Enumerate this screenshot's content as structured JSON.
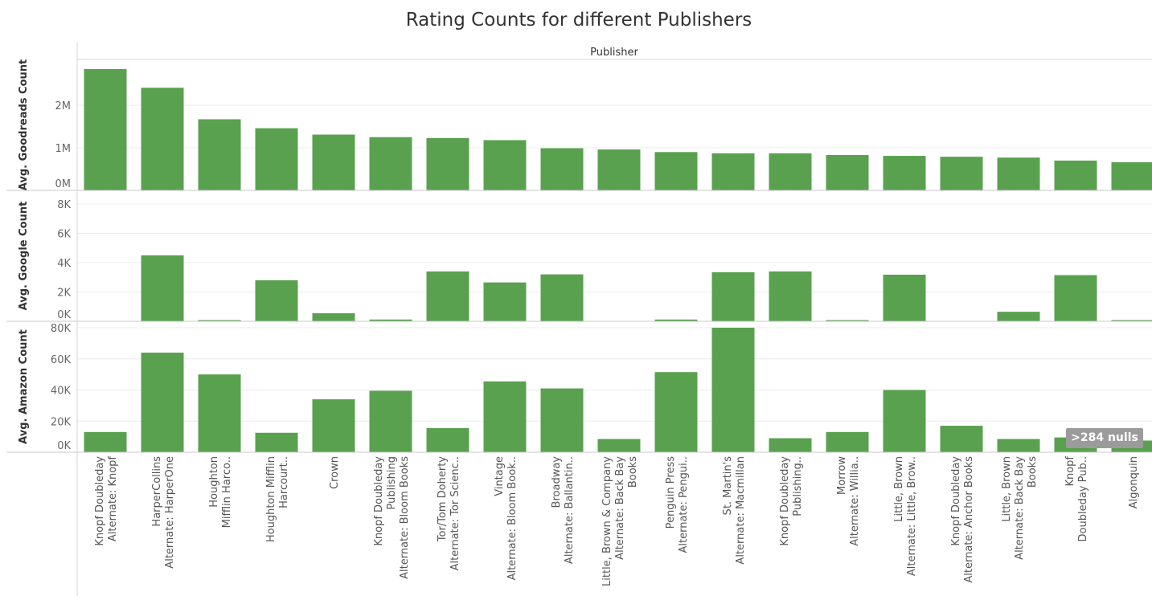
{
  "chart_data": {
    "type": "bar",
    "title": "Rating Counts for different Publishers",
    "column_header": "Publisher",
    "categories": [
      [
        "Knopf Doubleday",
        "Alternate: Knopf"
      ],
      [
        "HarperCollins",
        "Alternate: HarperOne"
      ],
      [
        "Houghton",
        "Mifflin Harco.."
      ],
      [
        "Houghton Mifflin",
        "Harcourt.."
      ],
      [
        "Crown"
      ],
      [
        "Knopf Doubleday",
        "Publishing",
        "Alternate: Bloom Books"
      ],
      [
        "Tor/Tom Doherty",
        "Alternate: Tor Scienc.."
      ],
      [
        "Vintage",
        "Alternate: Bloom Book.."
      ],
      [
        "Broadway",
        "Alternate: Ballantin.."
      ],
      [
        "Little, Brown & Company",
        "Alternate: Back Bay",
        "Books"
      ],
      [
        "Penguin Press",
        "Alternate: Pengui.."
      ],
      [
        "St. Martin's",
        "Alternate: Macmillan"
      ],
      [
        "Knopf Doubleday",
        "Publishing.."
      ],
      [
        "Morrow",
        "Alternate: Willia.."
      ],
      [
        "Little, Brown",
        "Alternate: Little, Brow.."
      ],
      [
        "Knopf Doubleday",
        "Alternate: Anchor Books"
      ],
      [
        "Little, Brown",
        "Alternate: Back Bay",
        "Books"
      ],
      [
        "Knopf",
        "Doubleday Pub.."
      ],
      [
        "Algonquin"
      ]
    ],
    "panels": [
      {
        "ylabel": "Avg. Goodreads Count",
        "ticks": [
          {
            "v": 0,
            "t": "0M"
          },
          {
            "v": 1000000,
            "t": "1M"
          },
          {
            "v": 2000000,
            "t": "2M"
          }
        ],
        "values": [
          2850000,
          2410000,
          1670000,
          1460000,
          1310000,
          1250000,
          1230000,
          1180000,
          990000,
          960000,
          900000,
          870000,
          870000,
          830000,
          810000,
          790000,
          770000,
          700000,
          660000
        ]
      },
      {
        "ylabel": "Avg. Google Count",
        "ticks": [
          {
            "v": 0,
            "t": "0K"
          },
          {
            "v": 2000,
            "t": "2K"
          },
          {
            "v": 4000,
            "t": "4K"
          },
          {
            "v": 6000,
            "t": "6K"
          },
          {
            "v": 8000,
            "t": "8K"
          }
        ],
        "values": [
          0,
          4500,
          70,
          2800,
          550,
          120,
          3400,
          2650,
          3200,
          0,
          120,
          3350,
          3400,
          60,
          3180,
          0,
          650,
          3150,
          60
        ]
      },
      {
        "ylabel": "Avg. Amazon Count",
        "ticks": [
          {
            "v": 0,
            "t": "0K"
          },
          {
            "v": 20000,
            "t": "20K"
          },
          {
            "v": 40000,
            "t": "40K"
          },
          {
            "v": 60000,
            "t": "60K"
          },
          {
            "v": 80000,
            "t": "80K"
          }
        ],
        "values": [
          13000,
          64000,
          50000,
          12500,
          34000,
          39500,
          15500,
          45500,
          41000,
          8500,
          51500,
          80000,
          9000,
          13000,
          40000,
          17000,
          8500,
          9500,
          7500
        ]
      }
    ],
    "bar_color": "#59a14f",
    "grid": true,
    "legend": "none",
    "nulls_indicator": ">284 nulls"
  }
}
